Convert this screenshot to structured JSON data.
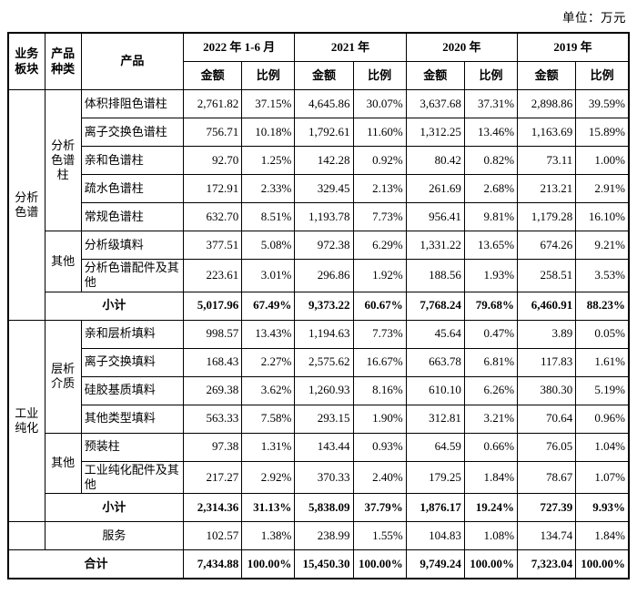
{
  "unit_label": "单位：万元",
  "table": {
    "headers": {
      "business_segment": "业务板块",
      "product_category": "产品种类",
      "product": "产品",
      "periods": [
        "2022 年 1-6 月",
        "2021 年",
        "2020 年",
        "2019 年"
      ],
      "amount": "金额",
      "ratio": "比例"
    },
    "rows": [
      {
        "cells": [
          {
            "text": "分析色谱",
            "rowspan": 8,
            "cls": "seg",
            "name": "segment-cell"
          },
          {
            "text": "分析色谱柱",
            "rowspan": 5,
            "cls": "cat",
            "name": "category-cell"
          },
          {
            "text": "体积排阻色谱柱",
            "cls": "prod",
            "name": "product-cell"
          }
        ],
        "values": [
          "2,761.82",
          "37.15%",
          "4,645.86",
          "30.07%",
          "3,637.68",
          "37.31%",
          "2,898.86",
          "39.59%"
        ]
      },
      {
        "cells": [
          {
            "text": "离子交换色谱柱",
            "cls": "prod",
            "name": "product-cell"
          }
        ],
        "values": [
          "756.71",
          "10.18%",
          "1,792.61",
          "11.60%",
          "1,312.25",
          "13.46%",
          "1,163.69",
          "15.89%"
        ]
      },
      {
        "cells": [
          {
            "text": "亲和色谱柱",
            "cls": "prod",
            "name": "product-cell"
          }
        ],
        "values": [
          "92.70",
          "1.25%",
          "142.28",
          "0.92%",
          "80.42",
          "0.82%",
          "73.11",
          "1.00%"
        ]
      },
      {
        "cells": [
          {
            "text": "疏水色谱柱",
            "cls": "prod",
            "name": "product-cell"
          }
        ],
        "values": [
          "172.91",
          "2.33%",
          "329.45",
          "2.13%",
          "261.69",
          "2.68%",
          "213.21",
          "2.91%"
        ]
      },
      {
        "cells": [
          {
            "text": "常规色谱柱",
            "cls": "prod",
            "name": "product-cell"
          }
        ],
        "values": [
          "632.70",
          "8.51%",
          "1,193.78",
          "7.73%",
          "956.41",
          "9.81%",
          "1,179.28",
          "16.10%"
        ]
      },
      {
        "cells": [
          {
            "text": "其他",
            "rowspan": 2,
            "cls": "cat",
            "name": "category-cell"
          },
          {
            "text": "分析级填料",
            "cls": "prod",
            "name": "product-cell"
          }
        ],
        "values": [
          "377.51",
          "5.08%",
          "972.38",
          "6.29%",
          "1,331.22",
          "13.65%",
          "674.26",
          "9.21%"
        ]
      },
      {
        "cells": [
          {
            "text": "分析色谱配件及其他",
            "cls": "prod",
            "name": "product-cell"
          }
        ],
        "values": [
          "223.61",
          "3.01%",
          "296.86",
          "1.92%",
          "188.56",
          "1.93%",
          "258.51",
          "3.53%"
        ]
      },
      {
        "cells": [
          {
            "text": "小计",
            "colspan": 2,
            "cls": "subtotal",
            "name": "subtotal-label"
          }
        ],
        "values": [
          "5,017.96",
          "67.49%",
          "9,373.22",
          "60.67%",
          "7,768.24",
          "79.68%",
          "6,460.91",
          "88.23%"
        ],
        "bold": true
      },
      {
        "cells": [
          {
            "text": "工业纯化",
            "rowspan": 7,
            "cls": "seg",
            "name": "segment-cell"
          },
          {
            "text": "层析介质",
            "rowspan": 4,
            "cls": "cat",
            "name": "category-cell"
          },
          {
            "text": "亲和层析填料",
            "cls": "prod",
            "name": "product-cell"
          }
        ],
        "values": [
          "998.57",
          "13.43%",
          "1,194.63",
          "7.73%",
          "45.64",
          "0.47%",
          "3.89",
          "0.05%"
        ]
      },
      {
        "cells": [
          {
            "text": "离子交换填料",
            "cls": "prod",
            "name": "product-cell"
          }
        ],
        "values": [
          "168.43",
          "2.27%",
          "2,575.62",
          "16.67%",
          "663.78",
          "6.81%",
          "117.83",
          "1.61%"
        ]
      },
      {
        "cells": [
          {
            "text": "硅胶基质填料",
            "cls": "prod",
            "name": "product-cell"
          }
        ],
        "values": [
          "269.38",
          "3.62%",
          "1,260.93",
          "8.16%",
          "610.10",
          "6.26%",
          "380.30",
          "5.19%"
        ]
      },
      {
        "cells": [
          {
            "text": "其他类型填料",
            "cls": "prod",
            "name": "product-cell"
          }
        ],
        "values": [
          "563.33",
          "7.58%",
          "293.15",
          "1.90%",
          "312.81",
          "3.21%",
          "70.64",
          "0.96%"
        ]
      },
      {
        "cells": [
          {
            "text": "其他",
            "rowspan": 2,
            "cls": "cat",
            "name": "category-cell"
          },
          {
            "text": "预装柱",
            "cls": "prod",
            "name": "product-cell"
          }
        ],
        "values": [
          "97.38",
          "1.31%",
          "143.44",
          "0.93%",
          "64.59",
          "0.66%",
          "76.05",
          "1.04%"
        ]
      },
      {
        "cells": [
          {
            "text": "工业纯化配件及其他",
            "cls": "prod",
            "name": "product-cell"
          }
        ],
        "values": [
          "217.27",
          "2.92%",
          "370.33",
          "2.40%",
          "179.25",
          "1.84%",
          "78.67",
          "1.07%"
        ]
      },
      {
        "cells": [
          {
            "text": "小计",
            "colspan": 2,
            "cls": "subtotal",
            "name": "subtotal-label"
          }
        ],
        "values": [
          "2,314.36",
          "31.13%",
          "5,838.09",
          "37.79%",
          "1,876.17",
          "19.24%",
          "727.39",
          "9.93%"
        ],
        "bold": true
      },
      {
        "cells": [
          {
            "text": "",
            "cls": "seg",
            "name": "empty-cell"
          },
          {
            "text": "服务",
            "colspan": 2,
            "cls": "service",
            "name": "service-label"
          }
        ],
        "values": [
          "102.57",
          "1.38%",
          "238.99",
          "1.55%",
          "104.83",
          "1.08%",
          "134.74",
          "1.84%"
        ]
      },
      {
        "cells": [
          {
            "text": "合计",
            "colspan": 3,
            "cls": "total",
            "name": "total-label"
          }
        ],
        "values": [
          "7,434.88",
          "100.00%",
          "15,450.30",
          "100.00%",
          "9,749.24",
          "100.00%",
          "7,323.04",
          "100.00%"
        ],
        "bold": true
      }
    ]
  }
}
